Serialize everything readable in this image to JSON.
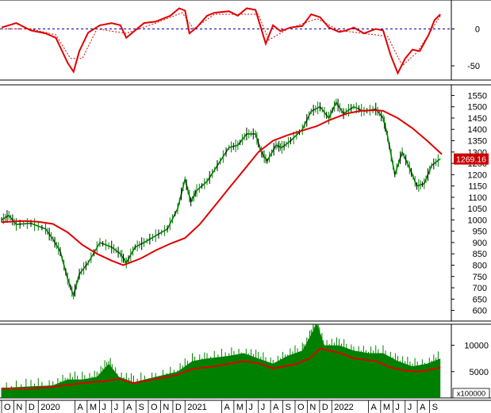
{
  "chart_data": [
    {
      "type": "line",
      "panel": "oscillator",
      "ylim": [
        -65,
        35
      ],
      "yticks": [
        0,
        -50
      ],
      "reference_line": 0,
      "series": [
        {
          "color": "#e00000",
          "style": "solid",
          "points": [
            [
              2019.75,
              2
            ],
            [
              2019.85,
              8
            ],
            [
              2019.95,
              -2
            ],
            [
              2020.05,
              -6
            ],
            [
              2020.12,
              -12
            ],
            [
              2020.2,
              -46
            ],
            [
              2020.24,
              -58
            ],
            [
              2020.28,
              -30
            ],
            [
              2020.34,
              -5
            ],
            [
              2020.42,
              5
            ],
            [
              2020.5,
              8
            ],
            [
              2020.56,
              5
            ],
            [
              2020.6,
              -12
            ],
            [
              2020.66,
              -2
            ],
            [
              2020.72,
              8
            ],
            [
              2020.8,
              10
            ],
            [
              2020.9,
              18
            ],
            [
              2020.96,
              28
            ],
            [
              2021.0,
              25
            ],
            [
              2021.03,
              -6
            ],
            [
              2021.08,
              2
            ],
            [
              2021.15,
              18
            ],
            [
              2021.2,
              22
            ],
            [
              2021.3,
              24
            ],
            [
              2021.36,
              18
            ],
            [
              2021.42,
              28
            ],
            [
              2021.48,
              26
            ],
            [
              2021.55,
              -20
            ],
            [
              2021.6,
              5
            ],
            [
              2021.65,
              -3
            ],
            [
              2021.72,
              2
            ],
            [
              2021.8,
              4
            ],
            [
              2021.86,
              20
            ],
            [
              2021.92,
              16
            ],
            [
              2021.98,
              2
            ],
            [
              2022.05,
              -4
            ],
            [
              2022.1,
              -2
            ],
            [
              2022.15,
              2
            ],
            [
              2022.22,
              -6
            ],
            [
              2022.3,
              0
            ],
            [
              2022.35,
              -2
            ],
            [
              2022.4,
              -35
            ],
            [
              2022.45,
              -60
            ],
            [
              2022.5,
              -40
            ],
            [
              2022.55,
              -28
            ],
            [
              2022.6,
              -30
            ],
            [
              2022.66,
              -8
            ],
            [
              2022.7,
              12
            ],
            [
              2022.74,
              20
            ]
          ]
        },
        {
          "color": "#e00000",
          "style": "dashed",
          "points": [
            [
              2019.75,
              0
            ],
            [
              2019.95,
              0
            ],
            [
              2020.12,
              -8
            ],
            [
              2020.22,
              -40
            ],
            [
              2020.3,
              -40
            ],
            [
              2020.4,
              0
            ],
            [
              2020.6,
              -6
            ],
            [
              2020.8,
              8
            ],
            [
              2020.98,
              22
            ],
            [
              2021.06,
              0
            ],
            [
              2021.2,
              20
            ],
            [
              2021.5,
              20
            ],
            [
              2021.57,
              -15
            ],
            [
              2021.7,
              0
            ],
            [
              2021.9,
              14
            ],
            [
              2022.05,
              -2
            ],
            [
              2022.38,
              -10
            ],
            [
              2022.48,
              -50
            ],
            [
              2022.58,
              -32
            ],
            [
              2022.7,
              5
            ],
            [
              2022.74,
              18
            ]
          ]
        }
      ]
    },
    {
      "type": "line",
      "panel": "price",
      "ylim": [
        560,
        1590
      ],
      "yticks": [
        600,
        650,
        700,
        750,
        800,
        850,
        900,
        950,
        1000,
        1050,
        1100,
        1150,
        1200,
        1250,
        1300,
        1350,
        1400,
        1450,
        1500,
        1550
      ],
      "last_value_label": "1269.16",
      "series": [
        {
          "color": "#e00000",
          "style": "moving-average",
          "points": [
            [
              2019.75,
              990
            ],
            [
              2019.9,
              995
            ],
            [
              2020.0,
              992
            ],
            [
              2020.1,
              982
            ],
            [
              2020.2,
              945
            ],
            [
              2020.3,
              890
            ],
            [
              2020.4,
              850
            ],
            [
              2020.5,
              820
            ],
            [
              2020.58,
              800
            ],
            [
              2020.7,
              830
            ],
            [
              2020.8,
              865
            ],
            [
              2020.9,
              895
            ],
            [
              2021.0,
              920
            ],
            [
              2021.1,
              980
            ],
            [
              2021.2,
              1060
            ],
            [
              2021.3,
              1140
            ],
            [
              2021.4,
              1220
            ],
            [
              2021.5,
              1300
            ],
            [
              2021.6,
              1350
            ],
            [
              2021.7,
              1375
            ],
            [
              2021.8,
              1395
            ],
            [
              2021.9,
              1415
            ],
            [
              2021.98,
              1440
            ],
            [
              2022.1,
              1470
            ],
            [
              2022.2,
              1482
            ],
            [
              2022.3,
              1485
            ],
            [
              2022.35,
              1482
            ],
            [
              2022.45,
              1450
            ],
            [
              2022.55,
              1405
            ],
            [
              2022.65,
              1350
            ],
            [
              2022.75,
              1290
            ]
          ]
        },
        {
          "color": "#008000",
          "style": "price",
          "points": [
            [
              2019.75,
              1000
            ],
            [
              2019.8,
              1020
            ],
            [
              2019.85,
              980
            ],
            [
              2019.95,
              985
            ],
            [
              2020.05,
              960
            ],
            [
              2020.1,
              915
            ],
            [
              2020.15,
              860
            ],
            [
              2020.2,
              740
            ],
            [
              2020.24,
              665
            ],
            [
              2020.28,
              760
            ],
            [
              2020.34,
              810
            ],
            [
              2020.42,
              900
            ],
            [
              2020.5,
              880
            ],
            [
              2020.56,
              850
            ],
            [
              2020.6,
              810
            ],
            [
              2020.66,
              880
            ],
            [
              2020.72,
              900
            ],
            [
              2020.8,
              930
            ],
            [
              2020.88,
              960
            ],
            [
              2020.95,
              1050
            ],
            [
              2021.0,
              1180
            ],
            [
              2021.04,
              1080
            ],
            [
              2021.08,
              1130
            ],
            [
              2021.15,
              1170
            ],
            [
              2021.22,
              1240
            ],
            [
              2021.3,
              1320
            ],
            [
              2021.36,
              1330
            ],
            [
              2021.42,
              1380
            ],
            [
              2021.48,
              1380
            ],
            [
              2021.52,
              1300
            ],
            [
              2021.56,
              1260
            ],
            [
              2021.62,
              1330
            ],
            [
              2021.66,
              1320
            ],
            [
              2021.72,
              1350
            ],
            [
              2021.8,
              1400
            ],
            [
              2021.86,
              1480
            ],
            [
              2021.92,
              1500
            ],
            [
              2021.98,
              1450
            ],
            [
              2022.03,
              1520
            ],
            [
              2022.08,
              1470
            ],
            [
              2022.15,
              1500
            ],
            [
              2022.22,
              1480
            ],
            [
              2022.3,
              1490
            ],
            [
              2022.35,
              1450
            ],
            [
              2022.38,
              1370
            ],
            [
              2022.43,
              1200
            ],
            [
              2022.48,
              1300
            ],
            [
              2022.53,
              1230
            ],
            [
              2022.58,
              1150
            ],
            [
              2022.63,
              1160
            ],
            [
              2022.68,
              1240
            ],
            [
              2022.74,
              1270
            ]
          ]
        }
      ]
    },
    {
      "type": "bar",
      "panel": "volume",
      "ylim": [
        0,
        14000
      ],
      "yticks": [
        5000,
        10000
      ],
      "unit_label": "x100000",
      "bar_color": "#008000",
      "moving_average_color": "#e00000",
      "moving_average": [
        [
          2019.75,
          1800
        ],
        [
          2019.95,
          1800
        ],
        [
          2020.1,
          2100
        ],
        [
          2020.3,
          2800
        ],
        [
          2020.45,
          3200
        ],
        [
          2020.55,
          3600
        ],
        [
          2020.65,
          2800
        ],
        [
          2020.8,
          3600
        ],
        [
          2020.95,
          4400
        ],
        [
          2021.05,
          5500
        ],
        [
          2021.2,
          6000
        ],
        [
          2021.4,
          7000
        ],
        [
          2021.5,
          6600
        ],
        [
          2021.6,
          5600
        ],
        [
          2021.75,
          6400
        ],
        [
          2021.85,
          7500
        ],
        [
          2021.92,
          9400
        ],
        [
          2022.05,
          8600
        ],
        [
          2022.15,
          7500
        ],
        [
          2022.3,
          7000
        ],
        [
          2022.4,
          5800
        ],
        [
          2022.5,
          5200
        ],
        [
          2022.6,
          5000
        ],
        [
          2022.7,
          5500
        ],
        [
          2022.74,
          5800
        ]
      ],
      "volume_envelope": [
        [
          2019.75,
          1900
        ],
        [
          2019.95,
          2200
        ],
        [
          2020.1,
          2400
        ],
        [
          2020.2,
          3500
        ],
        [
          2020.3,
          3500
        ],
        [
          2020.4,
          4000
        ],
        [
          2020.48,
          6500
        ],
        [
          2020.55,
          4000
        ],
        [
          2020.65,
          3000
        ],
        [
          2020.8,
          4000
        ],
        [
          2020.95,
          5000
        ],
        [
          2021.05,
          7000
        ],
        [
          2021.15,
          7500
        ],
        [
          2021.3,
          8000
        ],
        [
          2021.4,
          8500
        ],
        [
          2021.5,
          7500
        ],
        [
          2021.6,
          6500
        ],
        [
          2021.7,
          8000
        ],
        [
          2021.8,
          9000
        ],
        [
          2021.86,
          12000
        ],
        [
          2021.9,
          14000
        ],
        [
          2021.95,
          10000
        ],
        [
          2022.05,
          10000
        ],
        [
          2022.15,
          9000
        ],
        [
          2022.25,
          8500
        ],
        [
          2022.35,
          8500
        ],
        [
          2022.45,
          7000
        ],
        [
          2022.55,
          6000
        ],
        [
          2022.65,
          6500
        ],
        [
          2022.74,
          7500
        ]
      ]
    }
  ],
  "x_axis": {
    "labels": [
      {
        "t": 2019.75,
        "label": "O"
      },
      {
        "t": 2019.833,
        "label": "N"
      },
      {
        "t": 2019.917,
        "label": "D"
      },
      {
        "t": 2020.0,
        "label": "2020"
      },
      {
        "t": 2020.25,
        "label": "A"
      },
      {
        "t": 2020.333,
        "label": "M"
      },
      {
        "t": 2020.417,
        "label": "J"
      },
      {
        "t": 2020.5,
        "label": "J"
      },
      {
        "t": 2020.583,
        "label": "A"
      },
      {
        "t": 2020.667,
        "label": "S"
      },
      {
        "t": 2020.75,
        "label": "O"
      },
      {
        "t": 2020.833,
        "label": "N"
      },
      {
        "t": 2020.917,
        "label": "D"
      },
      {
        "t": 2021.0,
        "label": "2021"
      },
      {
        "t": 2021.25,
        "label": "A"
      },
      {
        "t": 2021.333,
        "label": "M"
      },
      {
        "t": 2021.417,
        "label": "J"
      },
      {
        "t": 2021.5,
        "label": "J"
      },
      {
        "t": 2021.583,
        "label": "A"
      },
      {
        "t": 2021.667,
        "label": "S"
      },
      {
        "t": 2021.75,
        "label": "O"
      },
      {
        "t": 2021.833,
        "label": "N"
      },
      {
        "t": 2021.917,
        "label": "D"
      },
      {
        "t": 2022.0,
        "label": "2022"
      },
      {
        "t": 2022.25,
        "label": "A"
      },
      {
        "t": 2022.333,
        "label": "M"
      },
      {
        "t": 2022.417,
        "label": "J"
      },
      {
        "t": 2022.5,
        "label": "J"
      },
      {
        "t": 2022.583,
        "label": "A"
      },
      {
        "t": 2022.667,
        "label": "S"
      }
    ]
  }
}
